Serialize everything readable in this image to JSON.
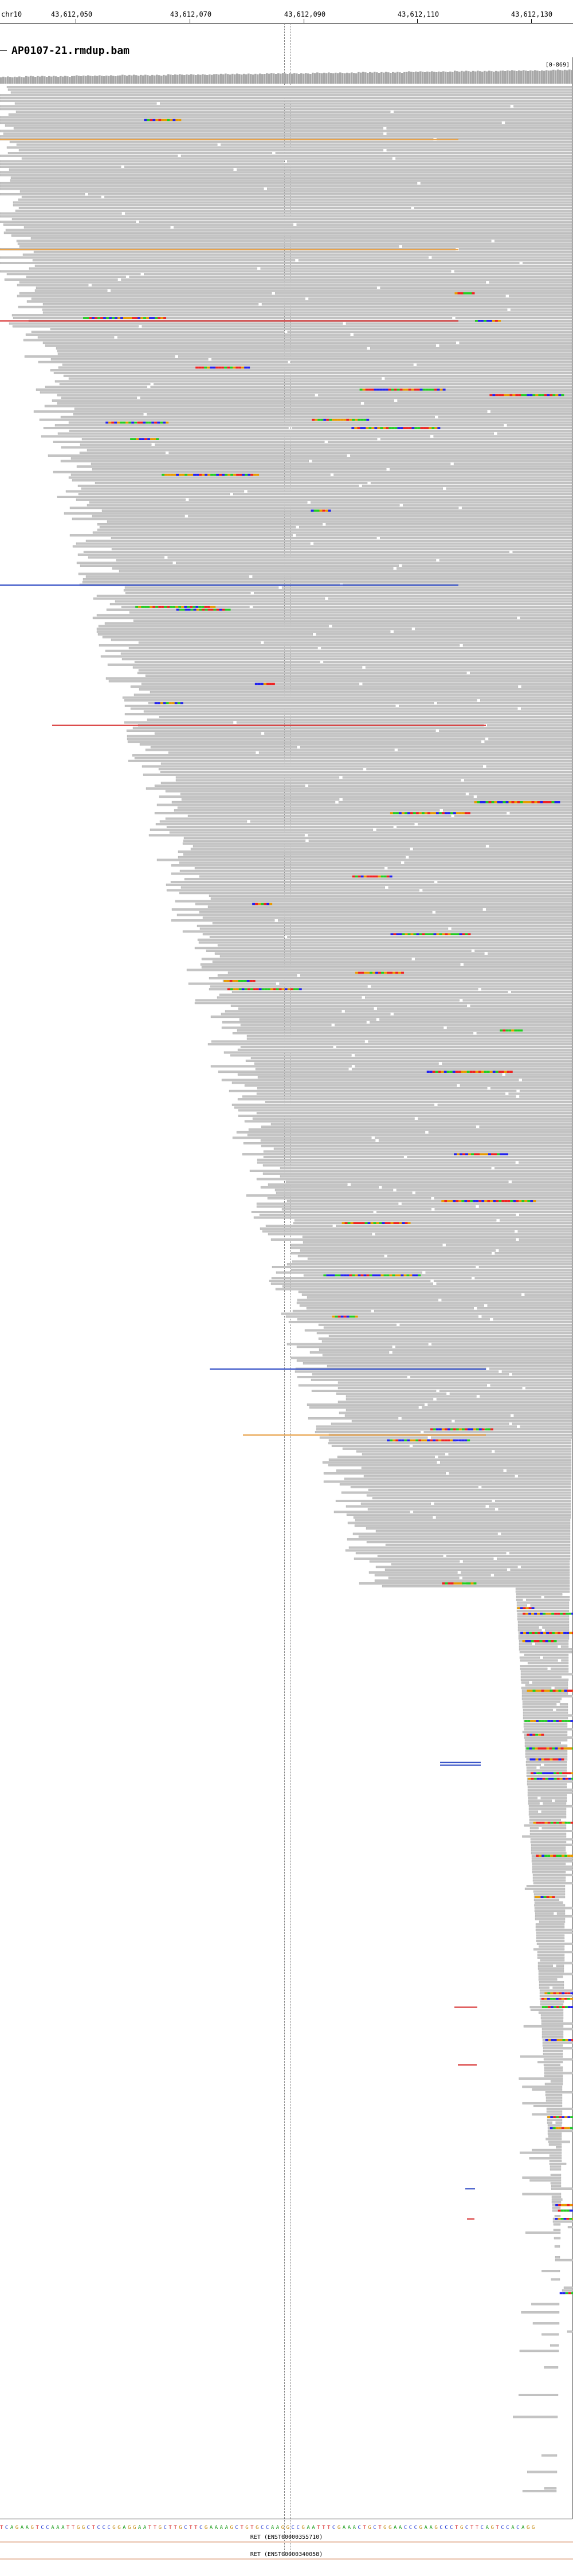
{
  "ruler": {
    "chromosome": "chr10",
    "ticks": [
      "43,612,050",
      "43,612,070",
      "43,612,090",
      "43,612,110",
      "43,612,130"
    ]
  },
  "track": {
    "name": "AP0107-21.rmdup.bam",
    "coverage_range": "[0-869]"
  },
  "sequence": {
    "bases": "TCAGAAGTCCAAATTGGCTCCCGGAGGAATTGCTTGCTTCGAAAAGCTGTGCCAAGGCCGAATTTCGAAACTGCTGGAACCCGAAGCCCTGCTTCAGTCCACAGG"
  },
  "genes": [
    {
      "label": "RET (ENST00000355710)"
    },
    {
      "label": "RET (ENST00000340058)"
    }
  ],
  "colors": {
    "read": "#c4c4c4",
    "read_outline": "#9f9f9f",
    "coverage": "#a8a8a8",
    "mismatch_a": "#22cc22",
    "mismatch_c": "#2222ee",
    "mismatch_g": "#e89a00",
    "mismatch_t": "#ee2222",
    "insert_line_orange": "#e8a24a",
    "insert_line_blue": "#3a55c8",
    "insert_line_red": "#d93a3a"
  }
}
